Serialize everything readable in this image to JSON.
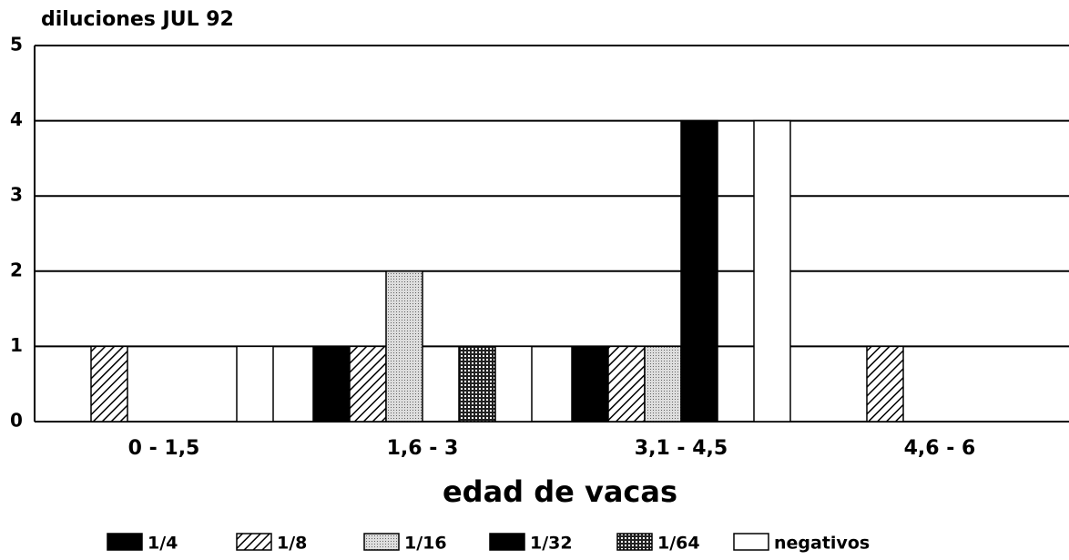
{
  "chart_data": {
    "type": "bar",
    "title": "diluciones JUL 92",
    "x_label": "edad de vacas",
    "categories": [
      "0 - 1,5",
      "1,6 - 3",
      "3,1 - 4,5",
      "4,6 - 6"
    ],
    "series": [
      {
        "name": "1/4",
        "color": "#000000",
        "pattern": "solid",
        "values": [
          0,
          1,
          1,
          0
        ]
      },
      {
        "name": "1/8",
        "color": "#000000",
        "pattern": "hatch",
        "values": [
          1,
          1,
          1,
          1
        ]
      },
      {
        "name": "1/16",
        "color": "#888888",
        "pattern": "dots",
        "values": [
          0,
          2,
          1,
          0
        ]
      },
      {
        "name": "1/32",
        "color": "#000000",
        "pattern": "solid",
        "values": [
          0,
          0,
          4,
          0
        ]
      },
      {
        "name": "1/64",
        "color": "#000000",
        "pattern": "grid",
        "values": [
          0,
          1,
          0,
          0
        ]
      },
      {
        "name": "negativos",
        "color": "#ffffff",
        "pattern": "solid",
        "values": [
          1,
          1,
          4,
          0
        ]
      }
    ],
    "ylim": [
      0,
      5
    ],
    "yticks": [
      0,
      1,
      2,
      3,
      4,
      5
    ],
    "grid": true
  }
}
